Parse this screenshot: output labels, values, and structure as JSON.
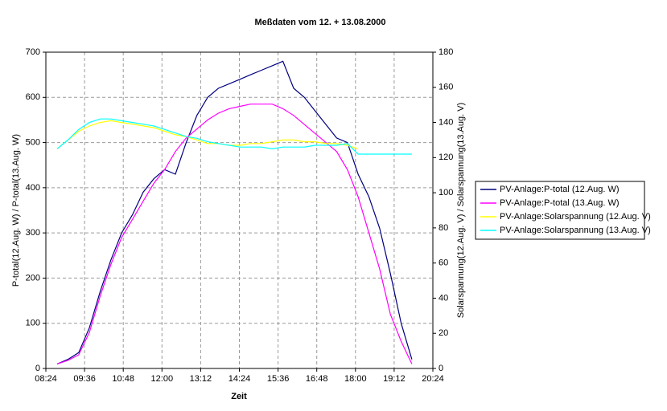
{
  "chart_data": {
    "type": "line",
    "title": "Meßdaten vom 12. + 13.08.2000",
    "x_label": "Zeit",
    "y_label": "P-total(12.Aug. W) / P-total(13.Aug. W)",
    "y2_label": "Solarspannung(12.Aug. V) / Solarspannung(13.Aug. V)",
    "x": [
      525,
      545,
      565,
      585,
      605,
      625,
      645,
      665,
      685,
      705,
      725,
      745,
      765,
      785,
      805,
      825,
      845,
      865,
      885,
      905,
      925,
      945,
      965,
      985,
      1005,
      1025,
      1045,
      1065,
      1085,
      1105,
      1125,
      1145,
      1165,
      1185
    ],
    "xlim": [
      504,
      1224
    ],
    "xticks": [
      {
        "value": 504,
        "label": "08:24"
      },
      {
        "value": 576,
        "label": "09:36"
      },
      {
        "value": 648,
        "label": "10:48"
      },
      {
        "value": 720,
        "label": "12:00"
      },
      {
        "value": 792,
        "label": "13:12"
      },
      {
        "value": 864,
        "label": "14:24"
      },
      {
        "value": 936,
        "label": "15:36"
      },
      {
        "value": 1008,
        "label": "16:48"
      },
      {
        "value": 1080,
        "label": "18:00"
      },
      {
        "value": 1152,
        "label": "19:12"
      },
      {
        "value": 1224,
        "label": "20:24"
      }
    ],
    "ylim": [
      0,
      700
    ],
    "yticks": [
      0,
      100,
      200,
      300,
      400,
      500,
      600,
      700
    ],
    "y2lim": [
      0,
      180
    ],
    "y2ticks": [
      0,
      20,
      40,
      60,
      80,
      100,
      120,
      140,
      160,
      180
    ],
    "grid": true,
    "legend": "right",
    "series": [
      {
        "name": "PV-Anlage:P-total (12.Aug. W)",
        "color": "#000080",
        "values": [
          10,
          20,
          35,
          90,
          170,
          240,
          300,
          340,
          390,
          420,
          440,
          430,
          500,
          560,
          600,
          620,
          630,
          640,
          650,
          660,
          670,
          680,
          620,
          600,
          570,
          540,
          510,
          500,
          430,
          380,
          310,
          210,
          100,
          20
        ]
      },
      {
        "name": "PV-Anlage:P-total (13.Aug. W)",
        "color": "#ff00ff",
        "values": [
          10,
          18,
          30,
          80,
          160,
          230,
          290,
          330,
          370,
          410,
          440,
          480,
          510,
          530,
          550,
          565,
          575,
          580,
          585,
          585,
          585,
          575,
          560,
          540,
          520,
          500,
          480,
          440,
          380,
          300,
          220,
          120,
          60,
          10
        ]
      },
      {
        "name": "PV-Anlage:Solarspannung (12.Aug. V)",
        "color": "#ffff00",
        "axis": "y2",
        "values": [
          125,
          130,
          135,
          138,
          140,
          141,
          140,
          139,
          138,
          137,
          135,
          133,
          132,
          130,
          128,
          128,
          127,
          127,
          128,
          128,
          129,
          130,
          130,
          129,
          129,
          128,
          128,
          127,
          125,
          null,
          null,
          null,
          null,
          null
        ]
      },
      {
        "name": "PV-Anlage:Solarspannung (13.Aug. V)",
        "color": "#00ffff",
        "axis": "y2",
        "values": [
          125,
          130,
          136,
          140,
          142,
          142,
          141,
          140,
          139,
          138,
          136,
          134,
          132,
          131,
          129,
          128,
          127,
          126,
          126,
          126,
          125,
          126,
          126,
          126,
          127,
          127,
          127,
          128,
          122,
          122,
          122,
          122,
          122,
          122
        ]
      }
    ]
  }
}
